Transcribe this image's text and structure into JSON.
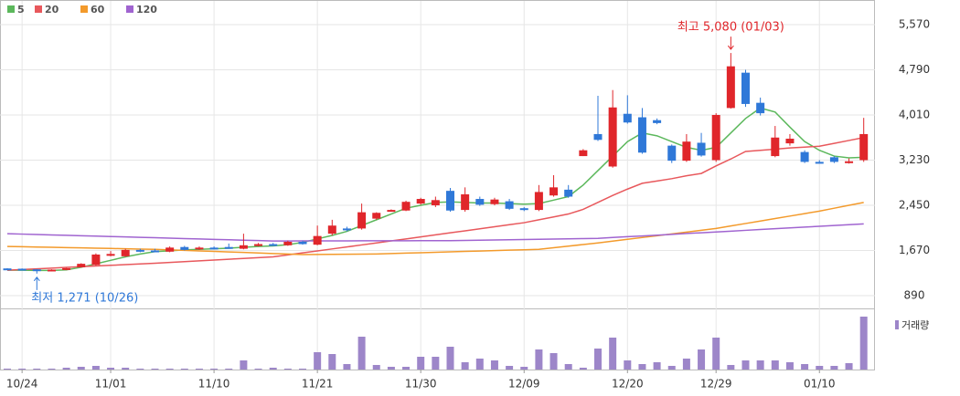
{
  "chart_data": {
    "type": "candlestick",
    "categories": [
      null,
      "10/24",
      null,
      null,
      null,
      null,
      null,
      "11/01",
      null,
      null,
      null,
      null,
      null,
      null,
      "11/10",
      null,
      null,
      null,
      null,
      null,
      null,
      "11/21",
      null,
      null,
      null,
      null,
      null,
      null,
      "11/30",
      null,
      null,
      null,
      null,
      null,
      null,
      "12/09",
      null,
      null,
      null,
      null,
      null,
      null,
      "12/20",
      null,
      null,
      null,
      null,
      null,
      "12/29",
      null,
      null,
      null,
      null,
      null,
      null,
      "01/10",
      null,
      null,
      null
    ],
    "open": [
      1360,
      1355,
      1345,
      1320,
      1340,
      1380,
      1420,
      1590,
      1570,
      1680,
      1670,
      1650,
      1730,
      1690,
      1720,
      1730,
      1700,
      1750,
      1780,
      1760,
      1820,
      1770,
      1960,
      2050,
      2050,
      2220,
      2350,
      2360,
      2480,
      2450,
      2700,
      2370,
      2560,
      2470,
      2520,
      2400,
      2370,
      2620,
      2720,
      3300,
      3680,
      3120,
      4030,
      3970,
      3920,
      3480,
      3220,
      3530,
      3230,
      4130,
      4740,
      4220,
      3300,
      3520,
      3370,
      3200,
      3280,
      3200,
      3230
    ],
    "high": [
      1365,
      1360,
      1350,
      1345,
      1370,
      1450,
      1620,
      1660,
      1700,
      1700,
      1700,
      1740,
      1750,
      1740,
      1740,
      1790,
      1960,
      1800,
      1800,
      1840,
      1840,
      2100,
      2200,
      2080,
      2480,
      2330,
      2380,
      2530,
      2580,
      2600,
      2750,
      2760,
      2600,
      2580,
      2560,
      2420,
      2800,
      2970,
      2800,
      3420,
      4340,
      4440,
      4350,
      4130,
      3950,
      3500,
      3680,
      3700,
      4040,
      5080,
      4790,
      4310,
      3820,
      3680,
      3400,
      3230,
      3300,
      3260,
      3960
    ],
    "low": [
      1350,
      1345,
      1271,
      1310,
      1330,
      1375,
      1410,
      1570,
      1560,
      1640,
      1640,
      1640,
      1670,
      1680,
      1690,
      1700,
      1690,
      1740,
      1750,
      1750,
      1770,
      1760,
      1930,
      2000,
      2030,
      2200,
      2340,
      2350,
      2460,
      2420,
      2340,
      2340,
      2440,
      2450,
      2370,
      2350,
      2350,
      2600,
      2580,
      3300,
      3560,
      3100,
      3860,
      3340,
      3850,
      3180,
      3200,
      3290,
      3200,
      4120,
      4150,
      4000,
      3280,
      3480,
      3180,
      3170,
      3180,
      3170,
      3200
    ],
    "close": [
      1355,
      1350,
      1330,
      1340,
      1365,
      1440,
      1600,
      1610,
      1680,
      1650,
      1650,
      1720,
      1680,
      1720,
      1700,
      1710,
      1760,
      1780,
      1760,
      1820,
      1780,
      1920,
      2100,
      2020,
      2330,
      2320,
      2370,
      2510,
      2560,
      2540,
      2360,
      2640,
      2460,
      2550,
      2390,
      2370,
      2680,
      2760,
      2600,
      3400,
      3580,
      4140,
      3880,
      3360,
      3870,
      3220,
      3550,
      3310,
      4010,
      4850,
      4200,
      4040,
      3620,
      3600,
      3200,
      3190,
      3200,
      3210,
      3680
    ],
    "volume": [
      1,
      1,
      1,
      1,
      2,
      3,
      4,
      2,
      2,
      1,
      1,
      1,
      1,
      1,
      1,
      1,
      10,
      1,
      2,
      1,
      1,
      19,
      17,
      6,
      36,
      5,
      3,
      3,
      14,
      14,
      25,
      8,
      12,
      10,
      4,
      3,
      22,
      18,
      6,
      2,
      23,
      35,
      10,
      6,
      8,
      4,
      12,
      22,
      35,
      5,
      10,
      10,
      10,
      8,
      6,
      4,
      4,
      7,
      58
    ],
    "up_color": "#e0262b",
    "down_color": "#2f78d8",
    "volume_color": "#9d86c9",
    "volume_label": "거래량",
    "moving_averages": [
      {
        "name": "5",
        "color": "#5cb85c",
        "values": [
          1330,
          1330,
          1325,
          1325,
          1335,
          1380,
          1440,
          1500,
          1560,
          1610,
          1650,
          1665,
          1680,
          1690,
          1700,
          1710,
          1725,
          1740,
          1750,
          1770,
          1810,
          1870,
          1930,
          2000,
          2100,
          2200,
          2300,
          2400,
          2450,
          2500,
          2510,
          2500,
          2490,
          2490,
          2480,
          2470,
          2480,
          2540,
          2600,
          2800,
          3050,
          3300,
          3550,
          3700,
          3650,
          3550,
          3450,
          3400,
          3450,
          3700,
          3950,
          4130,
          4060,
          3800,
          3550,
          3400,
          3300,
          3270,
          3280
        ]
      },
      {
        "name": "20",
        "color": "#e8585c",
        "values": [
          1330,
          1342,
          1354,
          1366,
          1378,
          1390,
          1402,
          1414,
          1426,
          1438,
          1450,
          1464,
          1478,
          1491,
          1505,
          1519,
          1533,
          1546,
          1560,
          1594,
          1629,
          1663,
          1697,
          1731,
          1766,
          1800,
          1835,
          1870,
          1905,
          1940,
          1975,
          2010,
          2045,
          2080,
          2115,
          2150,
          2200,
          2250,
          2300,
          2380,
          2500,
          2620,
          2730,
          2830,
          2870,
          2910,
          2960,
          3000,
          3130,
          3250,
          3380,
          3400,
          3420,
          3440,
          3455,
          3470,
          3520,
          3570,
          3620
        ]
      },
      {
        "name": "60",
        "color": "#f39a2b",
        "values": [
          1740,
          1735,
          1730,
          1725,
          1720,
          1715,
          1710,
          1705,
          1700,
          1695,
          1690,
          1681,
          1672,
          1663,
          1654,
          1645,
          1636,
          1627,
          1618,
          1609,
          1600,
          1602,
          1604,
          1606,
          1608,
          1610,
          1617,
          1625,
          1632,
          1639,
          1646,
          1654,
          1661,
          1668,
          1676,
          1683,
          1690,
          1718,
          1745,
          1773,
          1800,
          1831,
          1863,
          1894,
          1925,
          1956,
          1988,
          2019,
          2050,
          2093,
          2136,
          2179,
          2221,
          2264,
          2307,
          2350,
          2400,
          2450,
          2500
        ]
      },
      {
        "name": "120",
        "color": "#a064d0",
        "values": [
          1960,
          1953,
          1946,
          1939,
          1932,
          1925,
          1918,
          1911,
          1904,
          1897,
          1890,
          1883,
          1876,
          1869,
          1862,
          1855,
          1848,
          1841,
          1834,
          1834,
          1835,
          1835,
          1836,
          1836,
          1837,
          1837,
          1838,
          1838,
          1839,
          1839,
          1840,
          1844,
          1848,
          1852,
          1856,
          1860,
          1864,
          1868,
          1872,
          1876,
          1880,
          1894,
          1908,
          1921,
          1935,
          1949,
          1963,
          1976,
          1990,
          2004,
          2018,
          2032,
          2046,
          2060,
          2074,
          2088,
          2102,
          2116,
          2130
        ]
      }
    ],
    "ylim": [
      670,
      5995
    ],
    "yticks": [
      {
        "value": 5570,
        "label": "5,570"
      },
      {
        "value": 4790,
        "label": "4,790"
      },
      {
        "value": 4010,
        "label": "4,010"
      },
      {
        "value": 3230,
        "label": "3,230"
      },
      {
        "value": 2450,
        "label": "2,450"
      },
      {
        "value": 1670,
        "label": "1,670"
      },
      {
        "value": 890,
        "label": "890"
      }
    ],
    "annotations": [
      "최고 5,080 (01/03)",
      "최저 1,271 (10/26)"
    ],
    "grid": true
  }
}
